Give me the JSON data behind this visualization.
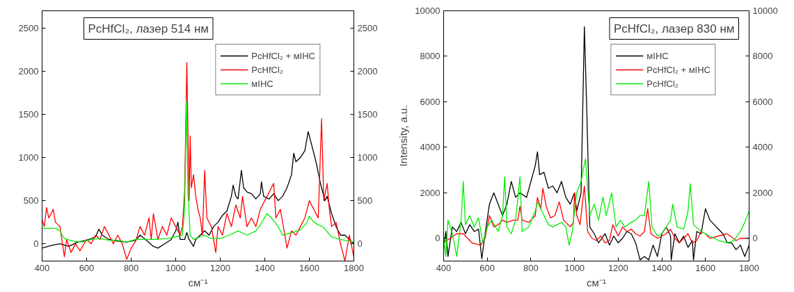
{
  "chart_data": [
    {
      "type": "line",
      "title": "PcHfCl₂, лазер 514 нм",
      "xlabel": "см⁻¹",
      "xlim": [
        400,
        1800
      ],
      "xticks": [
        400,
        600,
        800,
        1000,
        1200,
        1400,
        1600,
        1800
      ],
      "ylim": [
        -200,
        2700
      ],
      "yticks": [
        0,
        500,
        1000,
        1500,
        2000,
        2500
      ],
      "y2lim": [
        -200,
        2700
      ],
      "y2ticks": [
        0,
        500,
        1000,
        1500,
        2000,
        2500
      ],
      "grid": false,
      "legend": "top right",
      "series": [
        {
          "name": "PcHfCl₂ + мІНС",
          "color": "#000000",
          "x": [
            400,
            440,
            480,
            520,
            560,
            600,
            640,
            655,
            670,
            700,
            740,
            780,
            820,
            840,
            860,
            900,
            920,
            950,
            980,
            1000,
            1010,
            1020,
            1040,
            1050,
            1060,
            1080,
            1090,
            1110,
            1130,
            1150,
            1170,
            1190,
            1210,
            1230,
            1250,
            1258,
            1270,
            1280,
            1295,
            1305,
            1320,
            1340,
            1360,
            1380,
            1385,
            1395,
            1420,
            1440,
            1460,
            1480,
            1500,
            1520,
            1530,
            1540,
            1560,
            1580,
            1595,
            1610,
            1630,
            1650,
            1670,
            1680,
            1700,
            1720,
            1740,
            1760,
            1780,
            1800
          ],
          "values": [
            -50,
            -20,
            0,
            -30,
            20,
            40,
            80,
            170,
            100,
            50,
            30,
            20,
            40,
            100,
            60,
            -30,
            -50,
            0,
            50,
            150,
            250,
            50,
            50,
            130,
            50,
            -30,
            50,
            100,
            150,
            100,
            200,
            250,
            330,
            380,
            550,
            680,
            550,
            520,
            850,
            650,
            600,
            580,
            520,
            580,
            720,
            550,
            520,
            580,
            500,
            550,
            650,
            800,
            1050,
            950,
            1000,
            1080,
            1300,
            1150,
            950,
            700,
            500,
            550,
            350,
            200,
            100,
            100,
            50,
            0
          ]
        },
        {
          "name": "PcHfCl₂",
          "color": "#ff0000",
          "x": [
            400,
            410,
            420,
            430,
            450,
            460,
            480,
            500,
            510,
            530,
            550,
            570,
            600,
            620,
            640,
            660,
            680,
            700,
            720,
            740,
            760,
            780,
            800,
            820,
            840,
            860,
            880,
            890,
            900,
            920,
            940,
            960,
            980,
            1000,
            1020,
            1030,
            1040,
            1050,
            1060,
            1065,
            1070,
            1080,
            1090,
            1100,
            1110,
            1120,
            1130,
            1140,
            1160,
            1180,
            1190,
            1210,
            1230,
            1250,
            1270,
            1290,
            1300,
            1320,
            1340,
            1360,
            1380,
            1400,
            1420,
            1440,
            1450,
            1470,
            1490,
            1500,
            1520,
            1540,
            1560,
            1580,
            1600,
            1620,
            1640,
            1655,
            1665,
            1680,
            1690,
            1700,
            1720,
            1740,
            1760,
            1780,
            1800
          ],
          "values": [
            280,
            200,
            420,
            300,
            400,
            250,
            200,
            -150,
            50,
            -100,
            0,
            -80,
            50,
            0,
            100,
            50,
            200,
            100,
            0,
            100,
            0,
            -180,
            -50,
            30,
            200,
            100,
            300,
            50,
            350,
            50,
            200,
            100,
            300,
            200,
            100,
            200,
            600,
            2100,
            500,
            1250,
            650,
            800,
            550,
            400,
            300,
            100,
            850,
            300,
            200,
            -100,
            200,
            100,
            350,
            200,
            450,
            300,
            550,
            200,
            300,
            200,
            400,
            500,
            600,
            700,
            300,
            400,
            100,
            -50,
            150,
            100,
            200,
            300,
            500,
            400,
            300,
            1450,
            500,
            700,
            400,
            200,
            250,
            0,
            -200,
            100,
            -150
          ]
        },
        {
          "name": "мІНС",
          "color": "#00ee00",
          "x": [
            400,
            420,
            460,
            480,
            500,
            540,
            580,
            620,
            660,
            700,
            740,
            780,
            820,
            860,
            900,
            960,
            1000,
            1030,
            1040,
            1048,
            1055,
            1065,
            1080,
            1100,
            1130,
            1160,
            1200,
            1240,
            1280,
            1320,
            1360,
            1380,
            1410,
            1430,
            1460,
            1480,
            1520,
            1560,
            1590,
            1600,
            1620,
            1640,
            1660,
            1700,
            1740,
            1780,
            1800
          ],
          "values": [
            180,
            180,
            180,
            150,
            60,
            30,
            20,
            50,
            60,
            40,
            40,
            20,
            50,
            50,
            50,
            60,
            80,
            100,
            400,
            1650,
            600,
            100,
            50,
            70,
            100,
            60,
            60,
            100,
            150,
            100,
            150,
            220,
            350,
            300,
            200,
            100,
            130,
            160,
            250,
            320,
            250,
            220,
            200,
            80,
            50,
            30,
            20
          ]
        }
      ]
    },
    {
      "type": "line",
      "title": "PcHfCl₂, лазер 830 нм",
      "xlabel": "см⁻¹",
      "ylabel": "Intensity, a.u.",
      "xlim": [
        400,
        1800
      ],
      "xticks": [
        400,
        600,
        800,
        1000,
        1200,
        1400,
        1600,
        1800
      ],
      "ylim": [
        -1000,
        10000
      ],
      "yticks": [
        0,
        2000,
        4000,
        6000,
        8000,
        10000
      ],
      "y2lim": [
        -1000,
        10000
      ],
      "y2ticks": [
        0,
        2000,
        4000,
        6000,
        8000,
        10000
      ],
      "grid": false,
      "legend": "top right",
      "series": [
        {
          "name": "мІНС",
          "color": "#000000",
          "x": [
            400,
            410,
            420,
            440,
            460,
            480,
            500,
            520,
            540,
            560,
            575,
            590,
            610,
            630,
            650,
            670,
            690,
            710,
            730,
            750,
            780,
            800,
            820,
            830,
            840,
            860,
            880,
            900,
            920,
            940,
            960,
            980,
            1000,
            1010,
            1030,
            1045,
            1055,
            1070,
            1090,
            1110,
            1140,
            1160,
            1180,
            1200,
            1220,
            1240,
            1260,
            1280,
            1300,
            1320,
            1340,
            1360,
            1380,
            1400,
            1420,
            1440,
            1443,
            1460,
            1480,
            1500,
            1520,
            1540,
            1545,
            1560,
            1580,
            1600,
            1620,
            1640,
            1660,
            1680,
            1700,
            1720,
            1740,
            1760,
            1780,
            1800
          ],
          "values": [
            -500,
            300,
            -800,
            500,
            300,
            700,
            200,
            600,
            300,
            400,
            -900,
            200,
            1500,
            2000,
            1500,
            1000,
            1500,
            2500,
            1800,
            2000,
            1800,
            2500,
            3200,
            3800,
            2800,
            2900,
            2200,
            2300,
            2000,
            2500,
            1800,
            1500,
            2000,
            1200,
            2000,
            9300,
            6000,
            500,
            200,
            -200,
            200,
            -300,
            100,
            -200,
            0,
            300,
            200,
            -200,
            -950,
            -800,
            -950,
            -300,
            -800,
            200,
            500,
            100,
            -950,
            200,
            -200,
            100,
            -400,
            -100,
            -950,
            300,
            200,
            1300,
            800,
            600,
            400,
            200,
            -200,
            -200,
            -500,
            -300,
            -800,
            -300
          ]
        },
        {
          "name": "PcHfCl₂ + мІНС",
          "color": "#ff0000",
          "x": [
            400,
            430,
            460,
            490,
            510,
            530,
            570,
            590,
            610,
            630,
            650,
            670,
            690,
            720,
            740,
            750,
            760,
            790,
            820,
            830,
            845,
            855,
            870,
            890,
            910,
            930,
            950,
            980,
            995,
            1000,
            1010,
            1025,
            1045,
            1060,
            1080,
            1100,
            1120,
            1140,
            1160,
            1175,
            1200,
            1220,
            1240,
            1260,
            1280,
            1300,
            1320,
            1335,
            1350,
            1380,
            1400,
            1420,
            1440,
            1460,
            1480,
            1500,
            1520,
            1540,
            1560,
            1580,
            1600,
            1620,
            1660,
            1700,
            1740,
            1760,
            1800
          ],
          "values": [
            -200,
            0,
            200,
            200,
            0,
            -200,
            -300,
            0,
            1000,
            500,
            600,
            800,
            700,
            800,
            800,
            1400,
            800,
            700,
            1000,
            1800,
            1300,
            2200,
            1400,
            900,
            1000,
            1600,
            800,
            500,
            700,
            2000,
            1000,
            600,
            2300,
            300,
            0,
            -100,
            100,
            -200,
            -100,
            600,
            100,
            500,
            300,
            400,
            200,
            100,
            300,
            1300,
            200,
            0,
            100,
            200,
            400,
            0,
            -200,
            0,
            200,
            -200,
            -100,
            300,
            200,
            0,
            100,
            200,
            -100,
            0,
            0
          ]
        },
        {
          "name": "PcHfCl₂",
          "color": "#00ee00",
          "x": [
            400,
            410,
            420,
            440,
            460,
            480,
            490,
            500,
            520,
            540,
            560,
            580,
            600,
            620,
            650,
            670,
            680,
            690,
            710,
            730,
            750,
            760,
            790,
            820,
            830,
            860,
            880,
            900,
            940,
            960,
            975,
            990,
            1000,
            1010,
            1030,
            1050,
            1060,
            1070,
            1090,
            1110,
            1130,
            1145,
            1170,
            1190,
            1210,
            1230,
            1260,
            1280,
            1300,
            1320,
            1340,
            1355,
            1380,
            1400,
            1420,
            1440,
            1450,
            1470,
            1500,
            1520,
            1530,
            1545,
            1580,
            1620,
            1660,
            1700,
            1730,
            1760,
            1780,
            1800
          ],
          "values": [
            0,
            -800,
            800,
            200,
            -800,
            800,
            2500,
            600,
            1000,
            500,
            900,
            -200,
            500,
            800,
            300,
            1000,
            2700,
            500,
            200,
            800,
            2700,
            300,
            500,
            1200,
            1600,
            1000,
            600,
            500,
            700,
            500,
            -300,
            300,
            1200,
            2000,
            2500,
            3500,
            2200,
            1000,
            1500,
            800,
            1800,
            1000,
            2000,
            500,
            800,
            500,
            700,
            800,
            1000,
            1000,
            2500,
            500,
            100,
            200,
            500,
            800,
            1500,
            500,
            400,
            1200,
            2400,
            600,
            300,
            100,
            -100,
            -200,
            -100,
            300,
            700,
            1200
          ]
        }
      ]
    }
  ]
}
